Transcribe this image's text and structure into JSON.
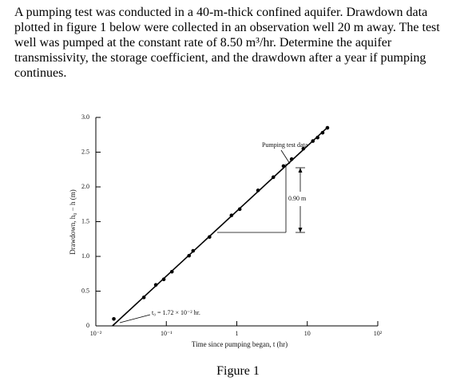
{
  "problem_text": "A pumping test was conducted in a 40-m-thick confined aquifer. Drawdown data plotted in figure 1 below were collected in an observation well 20 m away. The test well was pumped at the constant rate of 8.50 m³/hr. Determine the aquifer transmissivity, the storage coefficient, and the drawdown after a year if pumping continues.",
  "chart_data": {
    "type": "scatter",
    "xlabel": "Time since pumping began, t (hr)",
    "ylabel": "Drawdown, h₀ − h (m)",
    "xscale": "log",
    "xlim": [
      0.01,
      100
    ],
    "xticks": [
      {
        "value": 0.01,
        "label": "10⁻²"
      },
      {
        "value": 0.1,
        "label": "10⁻¹"
      },
      1,
      10,
      {
        "value": 100,
        "label": "10²"
      }
    ],
    "ylim": [
      0,
      3
    ],
    "yticks": [
      0,
      0.5,
      {
        "value": 1,
        "label": "1.0"
      },
      1.5,
      {
        "value": 2,
        "label": "2.0"
      },
      2.5,
      {
        "value": 3,
        "label": "3.0"
      }
    ],
    "grid": false,
    "series": [
      {
        "color": "#000000",
        "x": [
          0.018,
          0.048,
          0.071,
          0.092,
          0.12,
          0.21,
          0.24,
          0.41,
          0.84,
          1.1,
          2.0,
          3.3,
          4.6,
          6.0,
          8.8,
          12,
          14,
          16.5,
          19.3
        ],
        "values": [
          0.1,
          0.41,
          0.59,
          0.67,
          0.78,
          1.01,
          1.08,
          1.28,
          1.59,
          1.68,
          1.95,
          2.14,
          2.3,
          2.4,
          2.55,
          2.66,
          2.71,
          2.78,
          2.85
        ]
      }
    ],
    "fit_line": {
      "color": "#000000",
      "x": [
        0.0172,
        20
      ],
      "values": [
        0,
        2.87
      ]
    },
    "annotations": [
      "Pumping test data",
      "0.90 m",
      "t₀ = 1.72 × 10⁻² hr."
    ]
  },
  "caption": "Figure 1"
}
